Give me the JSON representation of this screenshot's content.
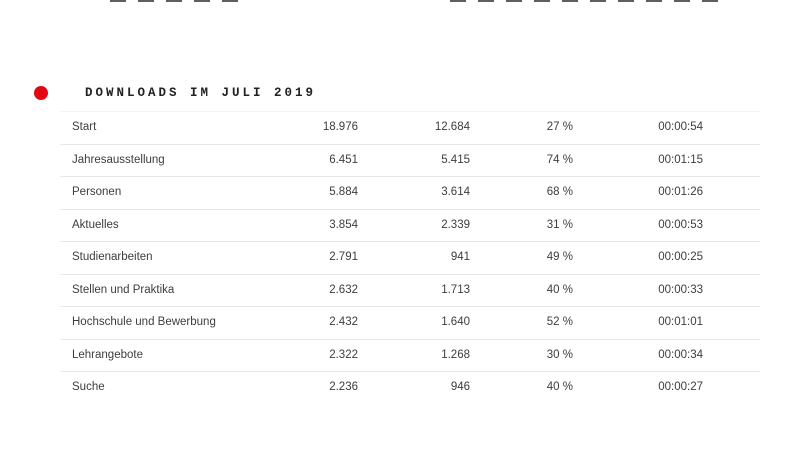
{
  "title": {
    "text": "DOWNLOADS IM JULI 2019",
    "bullet_color": "#e30613"
  },
  "table": {
    "rows": [
      {
        "label": "Start",
        "values": [
          "18.976",
          "12.684",
          "27 %",
          "00:00:54"
        ]
      },
      {
        "label": "Jahresausstellung",
        "values": [
          "6.451",
          "5.415",
          "74 %",
          "00:01:15"
        ]
      },
      {
        "label": "Personen",
        "values": [
          "5.884",
          "3.614",
          "68 %",
          "00:01:26"
        ]
      },
      {
        "label": "Aktuelles",
        "values": [
          "3.854",
          "2.339",
          "31 %",
          "00:00:53"
        ]
      },
      {
        "label": "Studienarbeiten",
        "values": [
          "2.791",
          "941",
          "49 %",
          "00:00:25"
        ]
      },
      {
        "label": "Stellen und Praktika",
        "values": [
          "2.632",
          "1.713",
          "40 %",
          "00:00:33"
        ]
      },
      {
        "label": "Hochschule und Bewerbung",
        "values": [
          "2.432",
          "1.640",
          "52 %",
          "00:01:01"
        ]
      },
      {
        "label": "Lehrangebote",
        "values": [
          "2.322",
          "1.268",
          "30 %",
          "00:00:34"
        ]
      },
      {
        "label": "Suche",
        "values": [
          "2.236",
          "946",
          "40 %",
          "00:00:27"
        ]
      }
    ]
  },
  "colors": {
    "background": "#ffffff",
    "accent_red": "#e30613",
    "table_text": "#3d3d3d",
    "separator": "#e8e8e8"
  },
  "chart_data": {
    "type": "table",
    "title": "DOWNLOADS IM JULI 2019",
    "categories": [
      "Start",
      "Jahresausstellung",
      "Personen",
      "Aktuelles",
      "Studienarbeiten",
      "Stellen und Praktika",
      "Hochschule und Bewerbung",
      "Lehrangebote",
      "Suche"
    ],
    "series": [
      {
        "name": "column-2-count",
        "values": [
          18976,
          6451,
          5884,
          3854,
          2791,
          2632,
          2432,
          2322,
          2236
        ]
      },
      {
        "name": "column-3-count",
        "values": [
          12684,
          5415,
          3614,
          2339,
          941,
          1713,
          1640,
          1268,
          946
        ]
      },
      {
        "name": "column-4-percent",
        "values": [
          27,
          74,
          68,
          31,
          49,
          40,
          52,
          30,
          40
        ]
      },
      {
        "name": "column-5-duration",
        "values": [
          "00:00:54",
          "00:01:15",
          "00:01:26",
          "00:00:53",
          "00:00:25",
          "00:00:33",
          "00:01:01",
          "00:00:34",
          "00:00:27"
        ]
      }
    ],
    "layout": {
      "headers_visible": false,
      "row_separators": true,
      "last_row_clipped": true
    }
  }
}
